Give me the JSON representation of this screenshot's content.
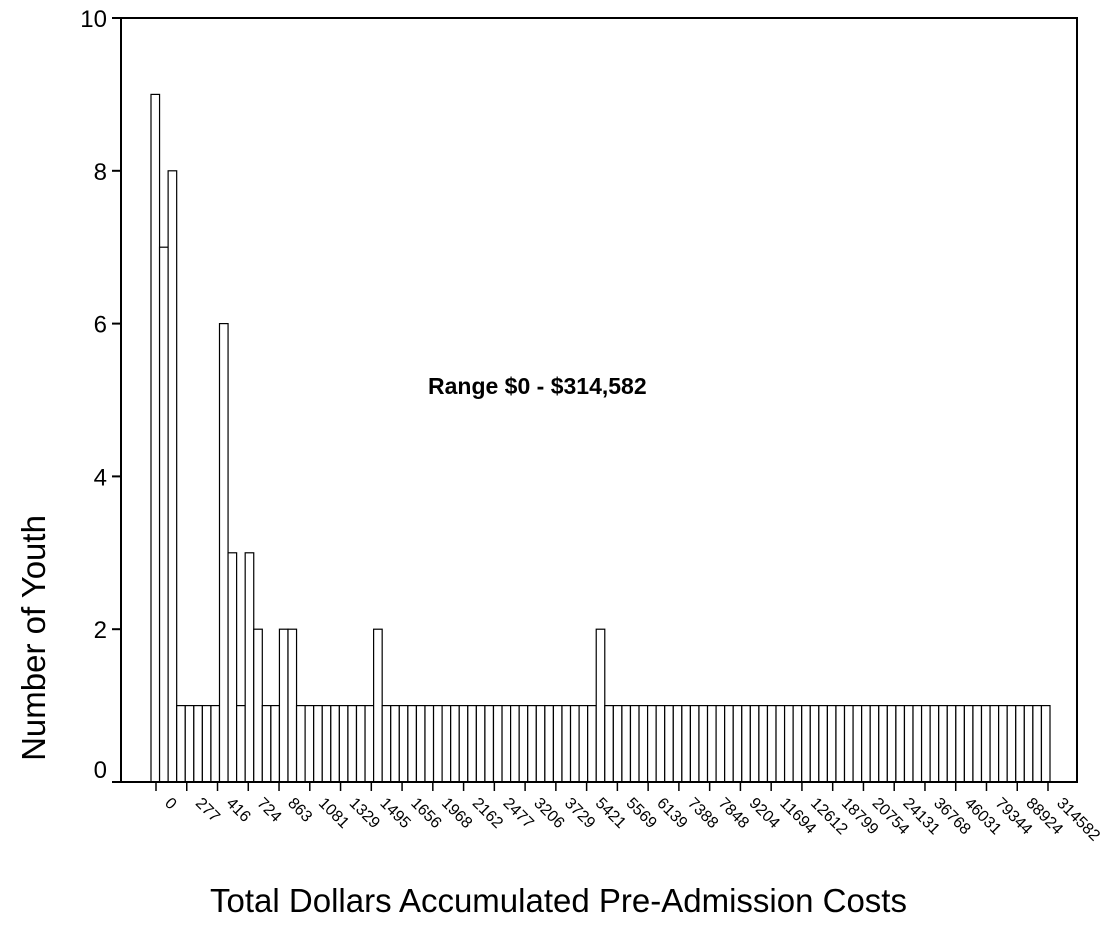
{
  "chart_data": {
    "type": "bar",
    "title": "",
    "xlabel": "Total Dollars Accumulated Pre-Admission Costs",
    "ylabel": "Number of Youth",
    "ylim": [
      0,
      10
    ],
    "yticks": [
      0,
      2,
      4,
      6,
      8,
      10
    ],
    "xtick_labels": [
      "0",
      "277",
      "416",
      "724",
      "863",
      "1081",
      "1329",
      "1495",
      "1656",
      "1968",
      "2162",
      "2477",
      "3206",
      "3729",
      "5421",
      "5569",
      "6139",
      "7388",
      "7848",
      "9204",
      "11694",
      "12612",
      "18799",
      "20754",
      "24131",
      "36768",
      "46031",
      "79344",
      "88924",
      "314582"
    ],
    "annotation": "Range $0 - $314,582",
    "values": [
      9,
      7,
      8,
      1,
      1,
      1,
      1,
      1,
      6,
      3,
      1,
      3,
      2,
      1,
      1,
      2,
      2,
      1,
      1,
      1,
      1,
      1,
      1,
      1,
      1,
      1,
      2,
      1,
      1,
      1,
      1,
      1,
      1,
      1,
      1,
      1,
      1,
      1,
      1,
      1,
      1,
      1,
      1,
      1,
      1,
      1,
      1,
      1,
      1,
      1,
      1,
      1,
      2,
      1,
      1,
      1,
      1,
      1,
      1,
      1,
      1,
      1,
      1,
      1,
      1,
      1,
      1,
      1,
      1,
      1,
      1,
      1,
      1,
      1,
      1,
      1,
      1,
      1,
      1,
      1,
      1,
      1,
      1,
      1,
      1,
      1,
      1,
      1,
      1,
      1,
      1,
      1,
      1,
      1,
      1,
      1,
      1,
      1,
      1,
      1,
      1,
      1,
      1,
      1,
      1
    ],
    "grid": false,
    "legend": "none"
  }
}
